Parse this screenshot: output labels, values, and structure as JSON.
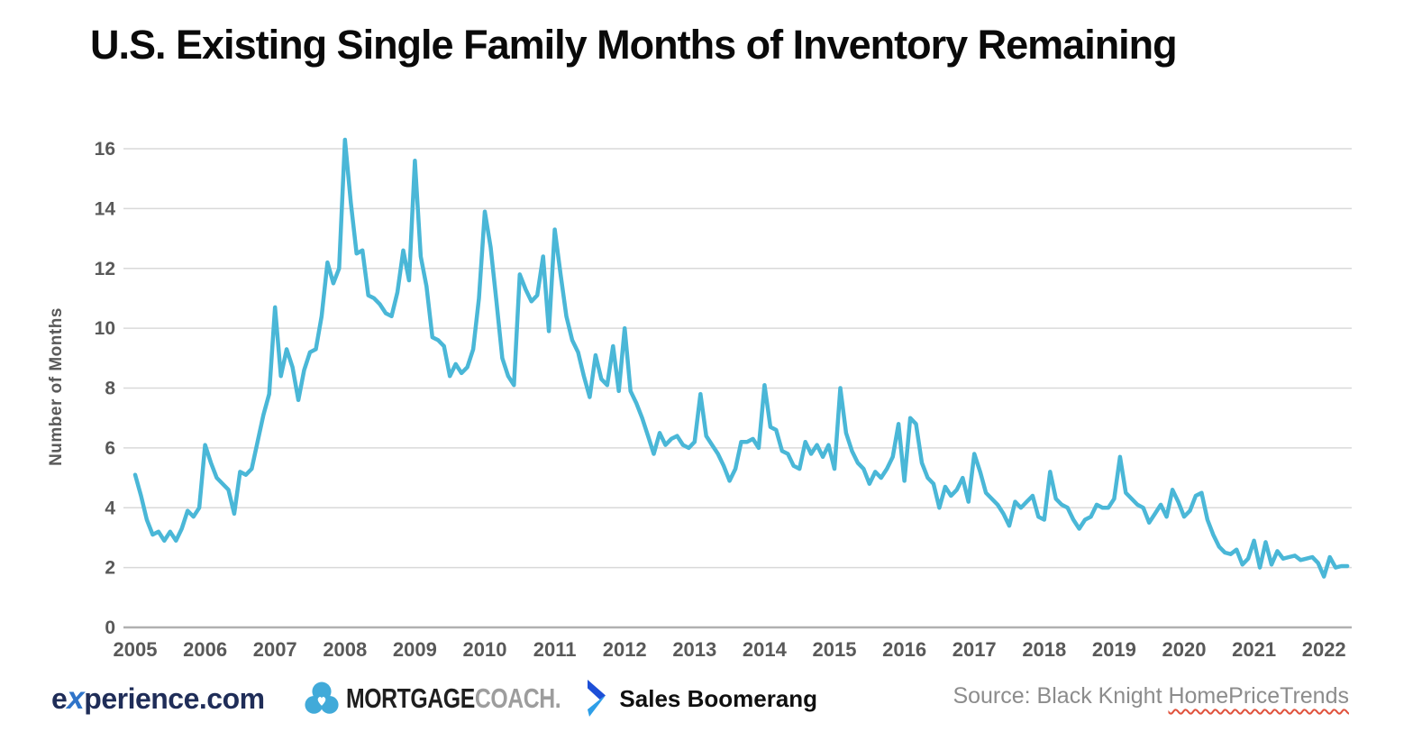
{
  "page": {
    "title": "U.S. Existing Single Family Months of Inventory Remaining"
  },
  "chart_data": {
    "type": "line",
    "title": "U.S. Existing Single Family Months of Inventory Remaining",
    "xlabel": "",
    "ylabel": "Number of Months",
    "x_tick_labels": [
      "2005",
      "2006",
      "2007",
      "2008",
      "2009",
      "2010",
      "2011",
      "2012",
      "2013",
      "2014",
      "2015",
      "2016",
      "2017",
      "2018",
      "2019",
      "2020",
      "2021",
      "2022"
    ],
    "y_ticks": [
      0,
      2,
      4,
      6,
      8,
      10,
      12,
      14,
      16
    ],
    "ylim": [
      0,
      16
    ],
    "grid": "horizontal",
    "legend_position": "none",
    "frequency": "monthly",
    "start_month": "2005-01",
    "end_month": "2022-05",
    "line_color": "#4ab7d7",
    "series": [
      {
        "name": "Months of inventory remaining",
        "values": [
          5.1,
          4.4,
          3.6,
          3.1,
          3.2,
          2.9,
          3.2,
          2.9,
          3.3,
          3.9,
          3.7,
          4.0,
          6.1,
          5.5,
          5.0,
          4.8,
          4.6,
          3.8,
          5.2,
          5.1,
          5.3,
          6.2,
          7.1,
          7.8,
          10.7,
          8.4,
          9.3,
          8.7,
          7.6,
          8.6,
          9.2,
          9.3,
          10.4,
          12.2,
          11.5,
          12.0,
          16.3,
          14.2,
          12.5,
          12.6,
          11.1,
          11.0,
          10.8,
          10.5,
          10.4,
          11.2,
          12.6,
          11.6,
          15.6,
          12.4,
          11.4,
          9.7,
          9.6,
          9.4,
          8.4,
          8.8,
          8.5,
          8.7,
          9.3,
          11.0,
          13.9,
          12.7,
          10.9,
          9.0,
          8.4,
          8.1,
          11.8,
          11.3,
          10.9,
          11.1,
          12.4,
          9.9,
          13.3,
          11.8,
          10.4,
          9.6,
          9.2,
          8.4,
          7.7,
          9.1,
          8.3,
          8.1,
          9.4,
          7.9,
          10.0,
          7.9,
          7.5,
          7.0,
          6.4,
          5.8,
          6.5,
          6.1,
          6.3,
          6.4,
          6.1,
          6.0,
          6.2,
          7.8,
          6.4,
          6.1,
          5.8,
          5.4,
          4.9,
          5.3,
          6.2,
          6.2,
          6.3,
          6.0,
          8.1,
          6.7,
          6.6,
          5.9,
          5.8,
          5.4,
          5.3,
          6.2,
          5.8,
          6.1,
          5.7,
          6.1,
          5.3,
          8.0,
          6.5,
          5.9,
          5.5,
          5.3,
          4.8,
          5.2,
          5.0,
          5.3,
          5.7,
          6.8,
          4.9,
          7.0,
          6.8,
          5.5,
          5.0,
          4.8,
          4.0,
          4.7,
          4.4,
          4.6,
          5.0,
          4.2,
          5.8,
          5.2,
          4.5,
          4.3,
          4.1,
          3.8,
          3.4,
          4.2,
          4.0,
          4.2,
          4.4,
          3.7,
          3.6,
          5.2,
          4.3,
          4.1,
          4.0,
          3.6,
          3.3,
          3.6,
          3.7,
          4.1,
          4.0,
          4.0,
          4.3,
          5.7,
          4.5,
          4.3,
          4.1,
          4.0,
          3.5,
          3.8,
          4.1,
          3.7,
          4.6,
          4.2,
          3.7,
          3.9,
          4.4,
          4.5,
          3.6,
          3.1,
          2.7,
          2.5,
          2.45,
          2.6,
          2.1,
          2.3,
          2.9,
          2.0,
          2.85,
          2.1,
          2.55,
          2.3,
          2.35,
          2.4,
          2.25,
          2.3,
          2.35,
          2.15,
          1.7,
          2.35,
          2.0,
          2.05,
          2.05
        ]
      }
    ]
  },
  "footer": {
    "experience_logo": {
      "pre": "e",
      "x": "x",
      "post": "perience.com"
    },
    "mortgagecoach_logo": {
      "part1": "MORTGAGE",
      "part2": "COACH."
    },
    "salesboomerang_logo": {
      "text": "Sales Boomerang"
    },
    "source_prefix": "Source: Black Knight ",
    "source_underlined": "HomePriceTrends"
  },
  "colors": {
    "line": "#4ab7d7",
    "gridline": "#d9d9d9",
    "axis_line": "#b0b0b0",
    "tick_text": "#595959",
    "title_text": "#0a0a0a",
    "source_text": "#8c8c8c",
    "experience_navy": "#1f2d58",
    "experience_blue": "#2f74c9",
    "mortgagecoach_icon_blue": "#41aad9",
    "mortgagecoach_gray": "#9d9d9d",
    "boomerang_dark_blue": "#1d4fd7",
    "boomerang_light_blue": "#2e9fe8",
    "squiggle_red": "#e0523c"
  }
}
